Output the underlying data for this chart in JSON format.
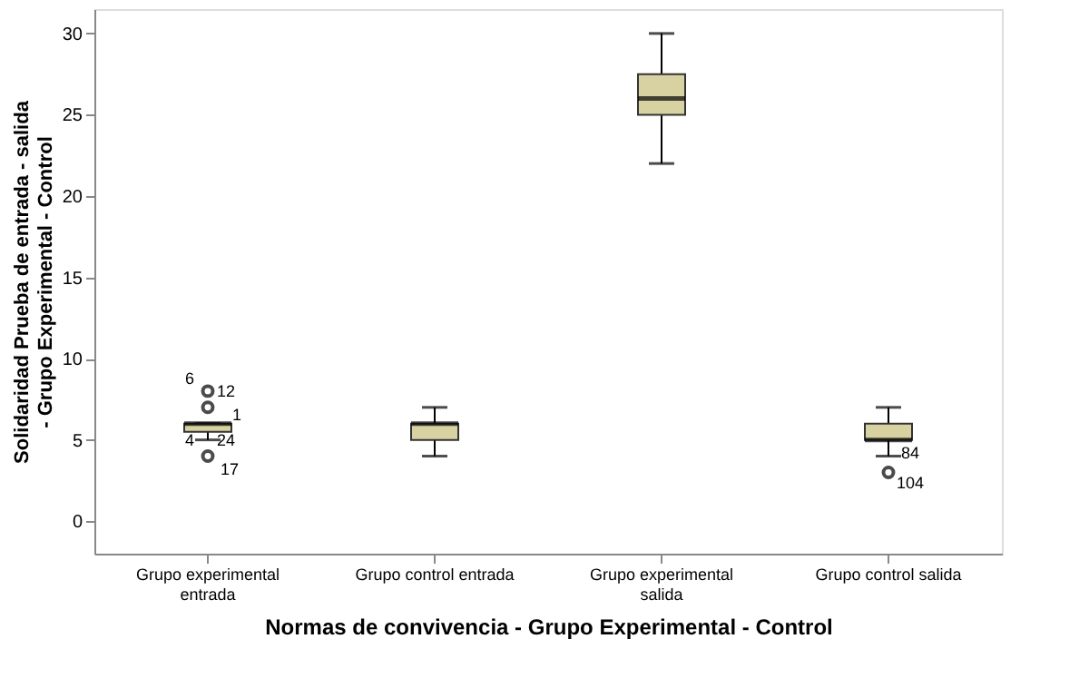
{
  "chart_data": {
    "type": "box",
    "xlabel": "Normas de convivencia - Grupo Experimental - Control",
    "ylabel": "Solidaridad Prueba de entrada - salida - Grupo Experimental - Control",
    "categories": [
      "Grupo experimental entrada",
      "Grupo control entrada",
      "Grupo experimental salida",
      "Grupo control salida"
    ],
    "boxes": [
      {
        "low": 5,
        "q1": 5.5,
        "median": 6,
        "q3": 6,
        "high": 6
      },
      {
        "low": 4,
        "q1": 5,
        "median": 6,
        "q3": 6,
        "high": 7
      },
      {
        "low": 22,
        "q1": 25,
        "median": 26,
        "q3": 27.5,
        "high": 30
      },
      {
        "low": 4,
        "q1": 5,
        "median": 5,
        "q3": 6,
        "high": 7
      }
    ],
    "series": [
      {
        "type": "scatter",
        "marker": "circle",
        "color": "#000000",
        "x": [
          "Grupo experimental entrada",
          "Grupo experimental entrada",
          "Grupo experimental entrada",
          "Grupo control salida"
        ],
        "values": [
          7,
          8,
          4,
          3
        ]
      }
    ],
    "color": "#d8d2a2",
    "ylim": [
      -2,
      31.5
    ],
    "yticks": [
      0,
      5,
      10,
      15,
      20,
      25,
      30
    ],
    "grid": false,
    "annotations": [
      {
        "text": "6",
        "x": "Grupo experimental entrada",
        "y": 8
      },
      {
        "text": "12",
        "x": "Grupo experimental entrada",
        "y": 8
      },
      {
        "text": "1",
        "x": "Grupo experimental entrada",
        "y": 7
      },
      {
        "text": "4",
        "x": "Grupo experimental entrada",
        "y": 5
      },
      {
        "text": "24",
        "x": "Grupo experimental entrada",
        "y": 5
      },
      {
        "text": "17",
        "x": "Grupo experimental entrada",
        "y": 4
      },
      {
        "text": "84",
        "x": "Grupo control salida",
        "y": 4
      },
      {
        "text": "104",
        "x": "Grupo control salida",
        "y": 3
      }
    ]
  }
}
